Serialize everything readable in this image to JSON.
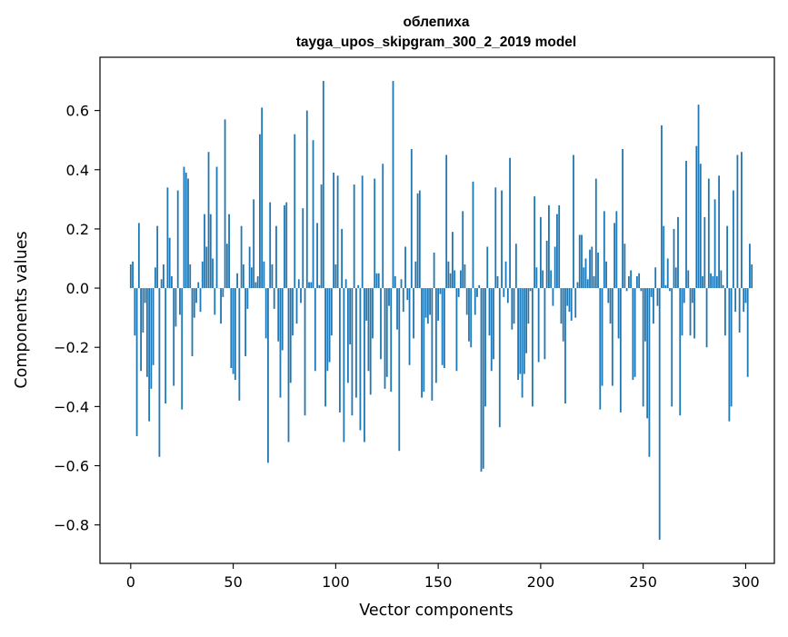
{
  "chart_data": {
    "type": "bar",
    "title_line1": "облепиха",
    "title_line2": "tayga_upos_skipgram_300_2_2019 model",
    "xlabel": "Vector components",
    "ylabel": "Components values",
    "xlim": [
      -15,
      314
    ],
    "ylim": [
      -0.93,
      0.78
    ],
    "xticks": [
      0,
      50,
      100,
      150,
      200,
      250,
      300
    ],
    "xtick_labels": [
      "0",
      "50",
      "100",
      "150",
      "200",
      "250",
      "300"
    ],
    "yticks": [
      -0.8,
      -0.6,
      -0.4,
      -0.2,
      0.0,
      0.2,
      0.4,
      0.6
    ],
    "ytick_labels": [
      "−0.8",
      "−0.6",
      "−0.4",
      "−0.2",
      "0.0",
      "0.2",
      "0.4",
      "0.6"
    ],
    "grid": false,
    "bar_color": "#1f77b4",
    "x_start": 0,
    "values": [
      0.08,
      0.09,
      -0.16,
      -0.5,
      0.22,
      -0.28,
      -0.15,
      -0.05,
      -0.3,
      -0.45,
      -0.34,
      -0.26,
      0.07,
      0.21,
      -0.57,
      0.03,
      0.08,
      -0.39,
      0.34,
      0.17,
      0.04,
      -0.33,
      -0.13,
      0.33,
      -0.09,
      -0.41,
      0.41,
      0.39,
      0.37,
      0.08,
      -0.23,
      -0.1,
      -0.05,
      0.02,
      -0.08,
      0.09,
      0.25,
      0.14,
      0.46,
      0.25,
      0.1,
      -0.09,
      0.41,
      0.0,
      -0.12,
      -0.03,
      0.57,
      0.15,
      0.25,
      -0.27,
      -0.29,
      -0.31,
      0.05,
      -0.38,
      0.21,
      0.08,
      -0.23,
      -0.07,
      0.14,
      0.07,
      0.3,
      0.02,
      0.04,
      0.52,
      0.61,
      0.09,
      -0.17,
      -0.59,
      0.29,
      0.08,
      -0.07,
      0.21,
      -0.18,
      -0.37,
      -0.21,
      0.28,
      0.29,
      -0.52,
      -0.32,
      -0.16,
      0.52,
      -0.12,
      0.03,
      -0.05,
      0.27,
      -0.43,
      0.6,
      0.02,
      0.02,
      0.5,
      -0.28,
      0.22,
      0.01,
      0.35,
      0.7,
      -0.4,
      -0.28,
      -0.25,
      -0.16,
      0.39,
      0.08,
      0.38,
      -0.42,
      0.2,
      -0.52,
      0.03,
      -0.32,
      -0.19,
      -0.43,
      0.35,
      -0.37,
      0.01,
      -0.48,
      0.38,
      -0.52,
      -0.11,
      -0.28,
      -0.36,
      -0.17,
      0.37,
      0.05,
      0.05,
      -0.24,
      0.42,
      -0.34,
      -0.3,
      -0.06,
      -0.35,
      0.7,
      0.04,
      -0.14,
      -0.55,
      0.03,
      -0.08,
      0.14,
      -0.04,
      -0.26,
      0.47,
      -0.17,
      0.09,
      0.32,
      0.33,
      -0.37,
      -0.35,
      -0.1,
      -0.12,
      -0.09,
      -0.38,
      0.12,
      -0.32,
      -0.11,
      -0.02,
      -0.26,
      -0.27,
      0.45,
      0.09,
      0.05,
      0.19,
      0.06,
      -0.28,
      -0.03,
      0.06,
      0.26,
      0.08,
      -0.09,
      -0.18,
      -0.2,
      0.36,
      -0.09,
      -0.03,
      0.01,
      -0.62,
      -0.61,
      -0.4,
      0.14,
      -0.16,
      -0.28,
      -0.24,
      0.34,
      0.04,
      -0.47,
      0.33,
      -0.03,
      0.09,
      -0.05,
      0.44,
      -0.14,
      -0.12,
      0.15,
      -0.31,
      -0.29,
      -0.37,
      -0.29,
      -0.22,
      -0.12,
      -0.01,
      -0.4,
      0.31,
      0.07,
      -0.25,
      0.24,
      0.06,
      -0.24,
      0.16,
      0.28,
      0.06,
      -0.06,
      0.14,
      0.25,
      0.28,
      -0.12,
      -0.18,
      -0.39,
      -0.06,
      -0.08,
      -0.11,
      0.45,
      -0.1,
      0.02,
      0.18,
      0.18,
      0.07,
      0.1,
      0.03,
      0.13,
      0.14,
      0.04,
      0.37,
      0.12,
      -0.41,
      -0.33,
      0.26,
      0.09,
      -0.05,
      -0.12,
      -0.33,
      0.22,
      0.26,
      -0.17,
      -0.42,
      0.47,
      0.15,
      -0.01,
      0.04,
      0.06,
      -0.31,
      -0.3,
      0.04,
      0.05,
      -0.01,
      -0.4,
      -0.18,
      -0.44,
      -0.57,
      -0.03,
      -0.12,
      0.07,
      -0.06,
      -0.85,
      0.55,
      0.21,
      0.01,
      0.1,
      -0.01,
      -0.4,
      0.2,
      0.07,
      0.24,
      -0.43,
      -0.16,
      -0.05,
      0.43,
      0.06,
      -0.16,
      -0.05,
      -0.17,
      0.48,
      0.62,
      0.42,
      0.04,
      0.24,
      -0.2,
      0.37,
      0.05,
      0.04,
      0.3,
      0.04,
      0.38,
      0.06,
      0.01,
      -0.16,
      0.21,
      -0.45,
      -0.4,
      0.33,
      -0.08,
      0.45,
      -0.15,
      0.46,
      -0.08,
      -0.05,
      -0.3,
      0.15,
      0.08
    ]
  }
}
